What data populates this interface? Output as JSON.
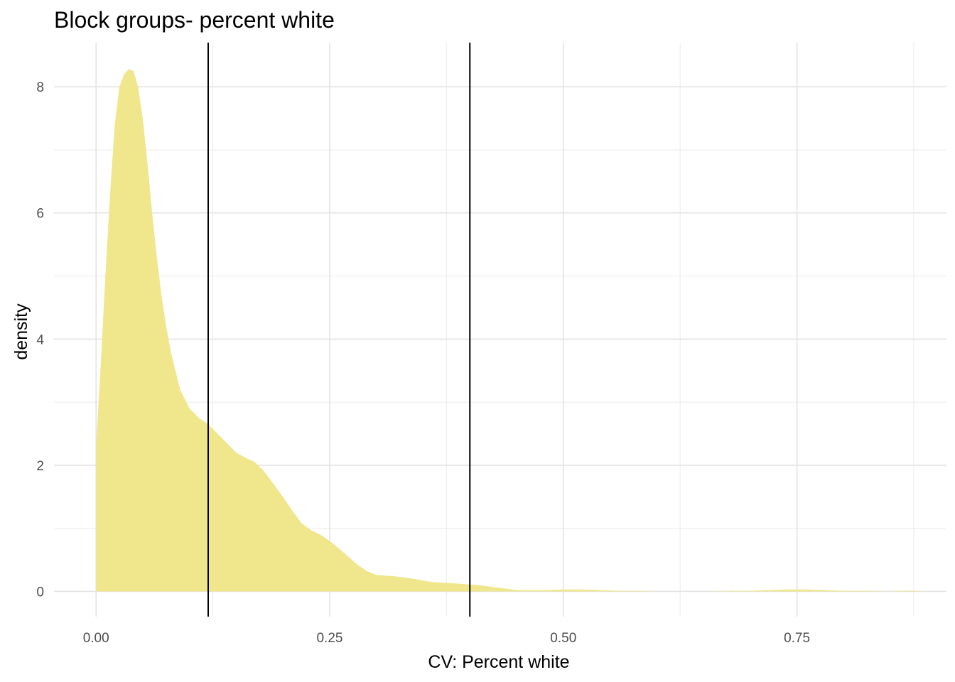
{
  "chart_data": {
    "type": "area",
    "title": "Block groups- percent white",
    "xlabel": "CV: Percent white",
    "ylabel": "density",
    "xlim": [
      -0.045,
      0.91
    ],
    "ylim": [
      -0.4,
      8.7
    ],
    "x_ticks": [
      0.0,
      0.25,
      0.5,
      0.75
    ],
    "x_tick_labels": [
      "0.00",
      "0.25",
      "0.50",
      "0.75"
    ],
    "y_ticks": [
      0,
      2,
      4,
      6,
      8
    ],
    "y_tick_labels": [
      "0",
      "2",
      "4",
      "6",
      "8"
    ],
    "grid": true,
    "fill_color": "#f0e68c",
    "vlines": [
      0.12,
      0.4
    ],
    "vline_color": "#000000",
    "series": [
      {
        "x": [
          0.0,
          0.005,
          0.01,
          0.015,
          0.02,
          0.025,
          0.03,
          0.035,
          0.04,
          0.045,
          0.05,
          0.055,
          0.06,
          0.065,
          0.07,
          0.075,
          0.08,
          0.09,
          0.1,
          0.11,
          0.12,
          0.13,
          0.14,
          0.15,
          0.16,
          0.17,
          0.18,
          0.19,
          0.2,
          0.21,
          0.22,
          0.23,
          0.24,
          0.25,
          0.26,
          0.27,
          0.28,
          0.29,
          0.3,
          0.31,
          0.32,
          0.33,
          0.34,
          0.35,
          0.36,
          0.37,
          0.38,
          0.39,
          0.4,
          0.41,
          0.42,
          0.43,
          0.44,
          0.45,
          0.46,
          0.48,
          0.5,
          0.52,
          0.54,
          0.56,
          0.58,
          0.6,
          0.65,
          0.7,
          0.72,
          0.74,
          0.75,
          0.76,
          0.78,
          0.8,
          0.82,
          0.85,
          0.86,
          0.87,
          0.875,
          0.885
        ],
        "y": [
          2.3,
          3.6,
          5.0,
          6.3,
          7.4,
          8.0,
          8.2,
          8.28,
          8.25,
          8.0,
          7.5,
          6.8,
          6.0,
          5.3,
          4.7,
          4.2,
          3.8,
          3.2,
          2.9,
          2.75,
          2.65,
          2.5,
          2.35,
          2.2,
          2.12,
          2.05,
          1.9,
          1.7,
          1.5,
          1.28,
          1.08,
          0.97,
          0.9,
          0.8,
          0.68,
          0.55,
          0.42,
          0.32,
          0.26,
          0.25,
          0.24,
          0.22,
          0.2,
          0.17,
          0.15,
          0.14,
          0.13,
          0.12,
          0.11,
          0.1,
          0.08,
          0.06,
          0.04,
          0.02,
          0.02,
          0.02,
          0.03,
          0.03,
          0.02,
          0.01,
          0.01,
          0.0,
          0.0,
          0.01,
          0.02,
          0.03,
          0.03,
          0.03,
          0.02,
          0.01,
          0.01,
          0.0,
          0.01,
          0.01,
          0.01,
          0.0
        ]
      }
    ]
  }
}
